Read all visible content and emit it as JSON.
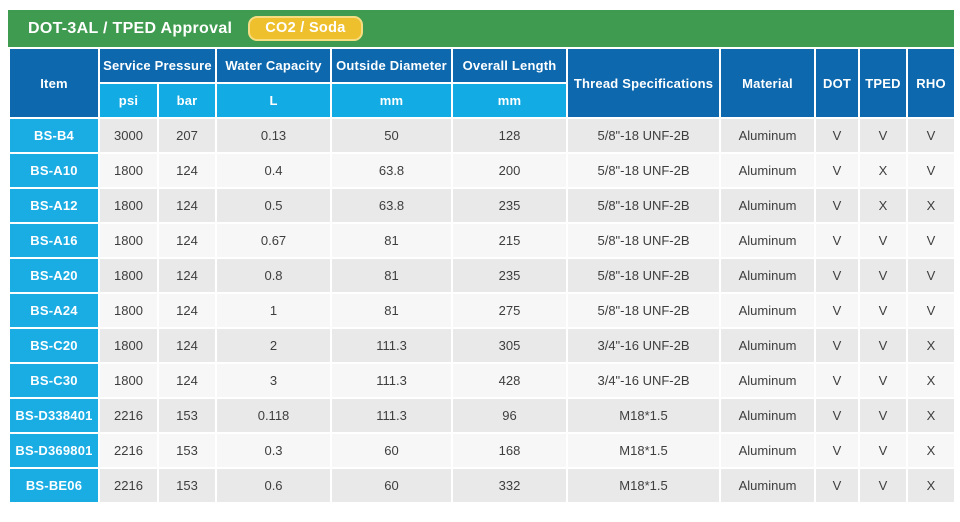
{
  "header": {
    "title": "DOT-3AL / TPED Approval",
    "badge": "CO2 / Soda"
  },
  "colors": {
    "title_bar_green": "#3f9b4f",
    "badge_yellow": "#efc02d",
    "badge_border": "#f7dd82",
    "header_dark_blue": "#0d68ae",
    "header_light_blue": "#12abe3",
    "item_cell_blue": "#1aade4",
    "row_gray_dark": "#e9e9e9",
    "row_gray_light": "#f7f7f7",
    "data_text": "#3e3e3e"
  },
  "table": {
    "headers": {
      "item": "Item",
      "service_pressure": "Service Pressure",
      "psi": "psi",
      "bar": "bar",
      "water_capacity": "Water Capacity",
      "water_capacity_unit": "L",
      "outside_diameter": "Outside Diameter",
      "outside_diameter_unit": "mm",
      "overall_length": "Overall Length",
      "overall_length_unit": "mm",
      "thread_specifications": "Thread Specifications",
      "material": "Material",
      "dot": "DOT",
      "tped": "TPED",
      "rho": "RHO"
    },
    "rows": [
      [
        "BS-B4",
        "3000",
        "207",
        "0.13",
        "50",
        "128",
        "5/8\"-18 UNF-2B",
        "Aluminum",
        "V",
        "V",
        "V"
      ],
      [
        "BS-A10",
        "1800",
        "124",
        "0.4",
        "63.8",
        "200",
        "5/8\"-18 UNF-2B",
        "Aluminum",
        "V",
        "X",
        "V"
      ],
      [
        "BS-A12",
        "1800",
        "124",
        "0.5",
        "63.8",
        "235",
        "5/8\"-18 UNF-2B",
        "Aluminum",
        "V",
        "X",
        "X"
      ],
      [
        "BS-A16",
        "1800",
        "124",
        "0.67",
        "81",
        "215",
        "5/8\"-18 UNF-2B",
        "Aluminum",
        "V",
        "V",
        "V"
      ],
      [
        "BS-A20",
        "1800",
        "124",
        "0.8",
        "81",
        "235",
        "5/8\"-18 UNF-2B",
        "Aluminum",
        "V",
        "V",
        "V"
      ],
      [
        "BS-A24",
        "1800",
        "124",
        "1",
        "81",
        "275",
        "5/8\"-18 UNF-2B",
        "Aluminum",
        "V",
        "V",
        "V"
      ],
      [
        "BS-C20",
        "1800",
        "124",
        "2",
        "111.3",
        "305",
        "3/4\"-16 UNF-2B",
        "Aluminum",
        "V",
        "V",
        "X"
      ],
      [
        "BS-C30",
        "1800",
        "124",
        "3",
        "111.3",
        "428",
        "3/4\"-16 UNF-2B",
        "Aluminum",
        "V",
        "V",
        "X"
      ],
      [
        "BS-D338401",
        "2216",
        "153",
        "0.118",
        "111.3",
        "96",
        "M18*1.5",
        "Aluminum",
        "V",
        "V",
        "X"
      ],
      [
        "BS-D369801",
        "2216",
        "153",
        "0.3",
        "60",
        "168",
        "M18*1.5",
        "Aluminum",
        "V",
        "V",
        "X"
      ],
      [
        "BS-BE06",
        "2216",
        "153",
        "0.6",
        "60",
        "332",
        "M18*1.5",
        "Aluminum",
        "V",
        "V",
        "X"
      ]
    ]
  }
}
